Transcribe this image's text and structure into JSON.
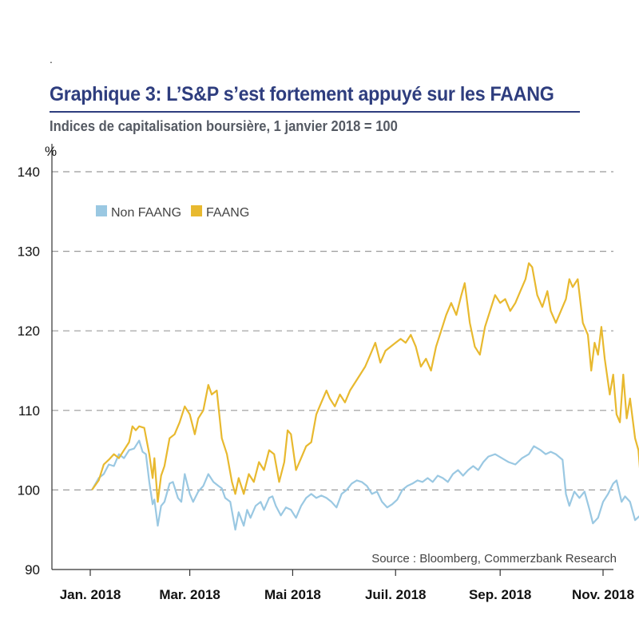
{
  "header": {
    "dot": ".",
    "title": "Graphique 3: L’S&P s’est fortement appuyé sur les FAANG",
    "subtitle": "Indices de capitalisation boursière, 1 janvier 2018 = 100"
  },
  "source": "Source : Bloomberg, Commerzbank Research",
  "chart_data": {
    "type": "line",
    "ylabel": "%",
    "ylim": [
      90,
      140
    ],
    "yticks": [
      90,
      100,
      110,
      120,
      130,
      140
    ],
    "grid": "horizontal dashed",
    "legend_placement": "top-left",
    "xlim": [
      "2018-01-01",
      "2018-12-31"
    ],
    "xticks": [
      {
        "label": "Jan. 2018",
        "date": "2018-01-01"
      },
      {
        "label": "Mar. 2018",
        "date": "2018-03-01"
      },
      {
        "label": "Mai 2018",
        "date": "2018-05-01"
      },
      {
        "label": "Juil. 2018",
        "date": "2018-07-01"
      },
      {
        "label": "Sep. 2018",
        "date": "2018-09-01"
      },
      {
        "label": "Nov. 2018",
        "date": "2018-11-01"
      }
    ],
    "series": [
      {
        "name": "Non FAANG",
        "color": "#9ac8e2",
        "points": [
          [
            "2018-01-02",
            100.0
          ],
          [
            "2018-01-06",
            101.5
          ],
          [
            "2018-01-09",
            102.0
          ],
          [
            "2018-01-12",
            103.2
          ],
          [
            "2018-01-15",
            103.0
          ],
          [
            "2018-01-18",
            104.5
          ],
          [
            "2018-01-21",
            104.0
          ],
          [
            "2018-01-24",
            105.0
          ],
          [
            "2018-01-27",
            105.2
          ],
          [
            "2018-01-30",
            106.2
          ],
          [
            "2018-02-01",
            104.8
          ],
          [
            "2018-02-03",
            104.5
          ],
          [
            "2018-02-05",
            101.0
          ],
          [
            "2018-02-07",
            98.2
          ],
          [
            "2018-02-08",
            98.8
          ],
          [
            "2018-02-10",
            95.5
          ],
          [
            "2018-02-12",
            98.0
          ],
          [
            "2018-02-14",
            98.5
          ],
          [
            "2018-02-17",
            100.8
          ],
          [
            "2018-02-19",
            101.0
          ],
          [
            "2018-02-22",
            99.0
          ],
          [
            "2018-02-24",
            98.5
          ],
          [
            "2018-02-26",
            102.0
          ],
          [
            "2018-03-01",
            99.5
          ],
          [
            "2018-03-03",
            98.5
          ],
          [
            "2018-03-06",
            99.8
          ],
          [
            "2018-03-09",
            100.5
          ],
          [
            "2018-03-12",
            102.0
          ],
          [
            "2018-03-15",
            101.0
          ],
          [
            "2018-03-18",
            100.5
          ],
          [
            "2018-03-20",
            100.2
          ],
          [
            "2018-03-22",
            99.0
          ],
          [
            "2018-03-25",
            98.5
          ],
          [
            "2018-03-28",
            95.0
          ],
          [
            "2018-03-30",
            97.2
          ],
          [
            "2018-04-02",
            95.5
          ],
          [
            "2018-04-04",
            97.5
          ],
          [
            "2018-04-06",
            96.5
          ],
          [
            "2018-04-09",
            98.0
          ],
          [
            "2018-04-12",
            98.5
          ],
          [
            "2018-04-14",
            97.5
          ],
          [
            "2018-04-17",
            99.0
          ],
          [
            "2018-04-19",
            99.2
          ],
          [
            "2018-04-21",
            98.0
          ],
          [
            "2018-04-24",
            96.8
          ],
          [
            "2018-04-27",
            97.8
          ],
          [
            "2018-04-30",
            97.5
          ],
          [
            "2018-05-03",
            96.5
          ],
          [
            "2018-05-06",
            98.0
          ],
          [
            "2018-05-09",
            99.0
          ],
          [
            "2018-05-12",
            99.5
          ],
          [
            "2018-05-15",
            99.0
          ],
          [
            "2018-05-18",
            99.3
          ],
          [
            "2018-05-21",
            99.0
          ],
          [
            "2018-05-24",
            98.5
          ],
          [
            "2018-05-27",
            97.8
          ],
          [
            "2018-05-30",
            99.5
          ],
          [
            "2018-06-02",
            100.0
          ],
          [
            "2018-06-05",
            100.8
          ],
          [
            "2018-06-08",
            101.2
          ],
          [
            "2018-06-11",
            101.0
          ],
          [
            "2018-06-14",
            100.5
          ],
          [
            "2018-06-17",
            99.5
          ],
          [
            "2018-06-20",
            99.8
          ],
          [
            "2018-06-23",
            98.5
          ],
          [
            "2018-06-26",
            97.8
          ],
          [
            "2018-06-29",
            98.2
          ],
          [
            "2018-07-02",
            98.8
          ],
          [
            "2018-07-05",
            100.0
          ],
          [
            "2018-07-08",
            100.5
          ],
          [
            "2018-07-11",
            100.8
          ],
          [
            "2018-07-14",
            101.2
          ],
          [
            "2018-07-17",
            101.0
          ],
          [
            "2018-07-20",
            101.5
          ],
          [
            "2018-07-23",
            101.0
          ],
          [
            "2018-07-26",
            101.8
          ],
          [
            "2018-07-29",
            101.5
          ],
          [
            "2018-08-01",
            101.0
          ],
          [
            "2018-08-04",
            102.0
          ],
          [
            "2018-08-07",
            102.5
          ],
          [
            "2018-08-10",
            101.8
          ],
          [
            "2018-08-13",
            102.5
          ],
          [
            "2018-08-16",
            103.0
          ],
          [
            "2018-08-19",
            102.5
          ],
          [
            "2018-08-22",
            103.5
          ],
          [
            "2018-08-25",
            104.2
          ],
          [
            "2018-08-29",
            104.5
          ],
          [
            "2018-09-02",
            104.0
          ],
          [
            "2018-09-06",
            103.5
          ],
          [
            "2018-09-10",
            103.2
          ],
          [
            "2018-09-14",
            104.0
          ],
          [
            "2018-09-18",
            104.5
          ],
          [
            "2018-09-21",
            105.5
          ],
          [
            "2018-09-25",
            105.0
          ],
          [
            "2018-09-28",
            104.5
          ],
          [
            "2018-10-01",
            104.8
          ],
          [
            "2018-10-04",
            104.5
          ],
          [
            "2018-10-08",
            103.8
          ],
          [
            "2018-10-10",
            99.5
          ],
          [
            "2018-10-12",
            98.0
          ],
          [
            "2018-10-15",
            99.8
          ],
          [
            "2018-10-18",
            99.0
          ],
          [
            "2018-10-21",
            99.8
          ],
          [
            "2018-10-24",
            97.5
          ],
          [
            "2018-10-26",
            95.8
          ],
          [
            "2018-10-29",
            96.5
          ],
          [
            "2018-11-01",
            98.5
          ],
          [
            "2018-11-04",
            99.5
          ],
          [
            "2018-11-07",
            100.8
          ],
          [
            "2018-11-09",
            101.2
          ],
          [
            "2018-11-12",
            98.5
          ],
          [
            "2018-11-14",
            99.2
          ],
          [
            "2018-11-17",
            98.5
          ],
          [
            "2018-11-20",
            96.2
          ],
          [
            "2018-11-23",
            96.8
          ],
          [
            "2018-11-26",
            98.0
          ],
          [
            "2018-11-29",
            99.5
          ],
          [
            "2018-12-02",
            100.2
          ],
          [
            "2018-12-04",
            100.8
          ]
        ]
      },
      {
        "name": "FAANG",
        "color": "#e8b92f",
        "points": [
          [
            "2018-01-02",
            100.0
          ],
          [
            "2018-01-06",
            101.2
          ],
          [
            "2018-01-09",
            103.2
          ],
          [
            "2018-01-12",
            103.8
          ],
          [
            "2018-01-15",
            104.5
          ],
          [
            "2018-01-18",
            104.0
          ],
          [
            "2018-01-21",
            105.0
          ],
          [
            "2018-01-24",
            106.0
          ],
          [
            "2018-01-26",
            108.0
          ],
          [
            "2018-01-28",
            107.5
          ],
          [
            "2018-01-30",
            108.0
          ],
          [
            "2018-02-02",
            107.8
          ],
          [
            "2018-02-05",
            104.5
          ],
          [
            "2018-02-07",
            101.5
          ],
          [
            "2018-02-08",
            104.0
          ],
          [
            "2018-02-10",
            98.5
          ],
          [
            "2018-02-12",
            101.8
          ],
          [
            "2018-02-14",
            103.0
          ],
          [
            "2018-02-17",
            106.5
          ],
          [
            "2018-02-20",
            107.0
          ],
          [
            "2018-02-23",
            108.5
          ],
          [
            "2018-02-26",
            110.5
          ],
          [
            "2018-03-01",
            109.5
          ],
          [
            "2018-03-04",
            107.0
          ],
          [
            "2018-03-06",
            109.0
          ],
          [
            "2018-03-09",
            110.0
          ],
          [
            "2018-03-12",
            113.2
          ],
          [
            "2018-03-14",
            112.0
          ],
          [
            "2018-03-17",
            112.5
          ],
          [
            "2018-03-20",
            106.5
          ],
          [
            "2018-03-23",
            104.5
          ],
          [
            "2018-03-26",
            101.0
          ],
          [
            "2018-03-28",
            99.5
          ],
          [
            "2018-03-30",
            101.5
          ],
          [
            "2018-04-02",
            99.5
          ],
          [
            "2018-04-05",
            102.0
          ],
          [
            "2018-04-08",
            101.0
          ],
          [
            "2018-04-11",
            103.5
          ],
          [
            "2018-04-14",
            102.5
          ],
          [
            "2018-04-17",
            105.0
          ],
          [
            "2018-04-20",
            104.5
          ],
          [
            "2018-04-23",
            101.0
          ],
          [
            "2018-04-26",
            103.5
          ],
          [
            "2018-04-28",
            107.5
          ],
          [
            "2018-04-30",
            107.0
          ],
          [
            "2018-05-03",
            102.5
          ],
          [
            "2018-05-06",
            104.0
          ],
          [
            "2018-05-09",
            105.5
          ],
          [
            "2018-05-12",
            106.0
          ],
          [
            "2018-05-15",
            109.5
          ],
          [
            "2018-05-18",
            111.0
          ],
          [
            "2018-05-21",
            112.5
          ],
          [
            "2018-05-23",
            111.5
          ],
          [
            "2018-05-26",
            110.5
          ],
          [
            "2018-05-29",
            112.0
          ],
          [
            "2018-06-01",
            111.0
          ],
          [
            "2018-06-04",
            112.5
          ],
          [
            "2018-06-07",
            113.5
          ],
          [
            "2018-06-10",
            114.5
          ],
          [
            "2018-06-13",
            115.5
          ],
          [
            "2018-06-16",
            117.0
          ],
          [
            "2018-06-19",
            118.5
          ],
          [
            "2018-06-22",
            116.0
          ],
          [
            "2018-06-25",
            117.5
          ],
          [
            "2018-06-28",
            118.0
          ],
          [
            "2018-07-01",
            118.5
          ],
          [
            "2018-07-04",
            119.0
          ],
          [
            "2018-07-07",
            118.5
          ],
          [
            "2018-07-10",
            119.5
          ],
          [
            "2018-07-13",
            118.0
          ],
          [
            "2018-07-16",
            115.5
          ],
          [
            "2018-07-19",
            116.5
          ],
          [
            "2018-07-22",
            115.0
          ],
          [
            "2018-07-25",
            118.0
          ],
          [
            "2018-07-28",
            120.0
          ],
          [
            "2018-07-31",
            122.0
          ],
          [
            "2018-08-03",
            123.5
          ],
          [
            "2018-08-06",
            122.0
          ],
          [
            "2018-08-09",
            124.5
          ],
          [
            "2018-08-11",
            126.0
          ],
          [
            "2018-08-14",
            121.0
          ],
          [
            "2018-08-17",
            118.0
          ],
          [
            "2018-08-20",
            117.0
          ],
          [
            "2018-08-23",
            120.5
          ],
          [
            "2018-08-26",
            122.5
          ],
          [
            "2018-08-29",
            124.5
          ],
          [
            "2018-09-01",
            123.5
          ],
          [
            "2018-09-04",
            124.0
          ],
          [
            "2018-09-07",
            122.5
          ],
          [
            "2018-09-10",
            123.5
          ],
          [
            "2018-09-13",
            125.0
          ],
          [
            "2018-09-16",
            126.5
          ],
          [
            "2018-09-18",
            128.5
          ],
          [
            "2018-09-20",
            128.0
          ],
          [
            "2018-09-23",
            124.5
          ],
          [
            "2018-09-26",
            123.0
          ],
          [
            "2018-09-29",
            125.0
          ],
          [
            "2018-10-01",
            122.5
          ],
          [
            "2018-10-04",
            121.0
          ],
          [
            "2018-10-07",
            122.5
          ],
          [
            "2018-10-10",
            124.0
          ],
          [
            "2018-10-12",
            126.5
          ],
          [
            "2018-10-14",
            125.5
          ],
          [
            "2018-10-17",
            126.5
          ],
          [
            "2018-10-20",
            121.0
          ],
          [
            "2018-10-23",
            119.5
          ],
          [
            "2018-10-25",
            115.0
          ],
          [
            "2018-10-27",
            118.5
          ],
          [
            "2018-10-29",
            117.0
          ],
          [
            "2018-10-31",
            120.5
          ],
          [
            "2018-11-02",
            116.5
          ],
          [
            "2018-11-05",
            112.0
          ],
          [
            "2018-11-07",
            114.5
          ],
          [
            "2018-11-09",
            109.5
          ],
          [
            "2018-11-11",
            108.5
          ],
          [
            "2018-11-13",
            114.5
          ],
          [
            "2018-11-15",
            109.0
          ],
          [
            "2018-11-17",
            111.5
          ],
          [
            "2018-11-20",
            106.5
          ],
          [
            "2018-11-22",
            105.0
          ],
          [
            "2018-11-24",
            99.5
          ],
          [
            "2018-11-26",
            100.5
          ],
          [
            "2018-11-28",
            99.0
          ],
          [
            "2018-11-30",
            101.5
          ],
          [
            "2018-12-02",
            104.5
          ],
          [
            "2018-12-04",
            106.0
          ]
        ]
      }
    ]
  }
}
